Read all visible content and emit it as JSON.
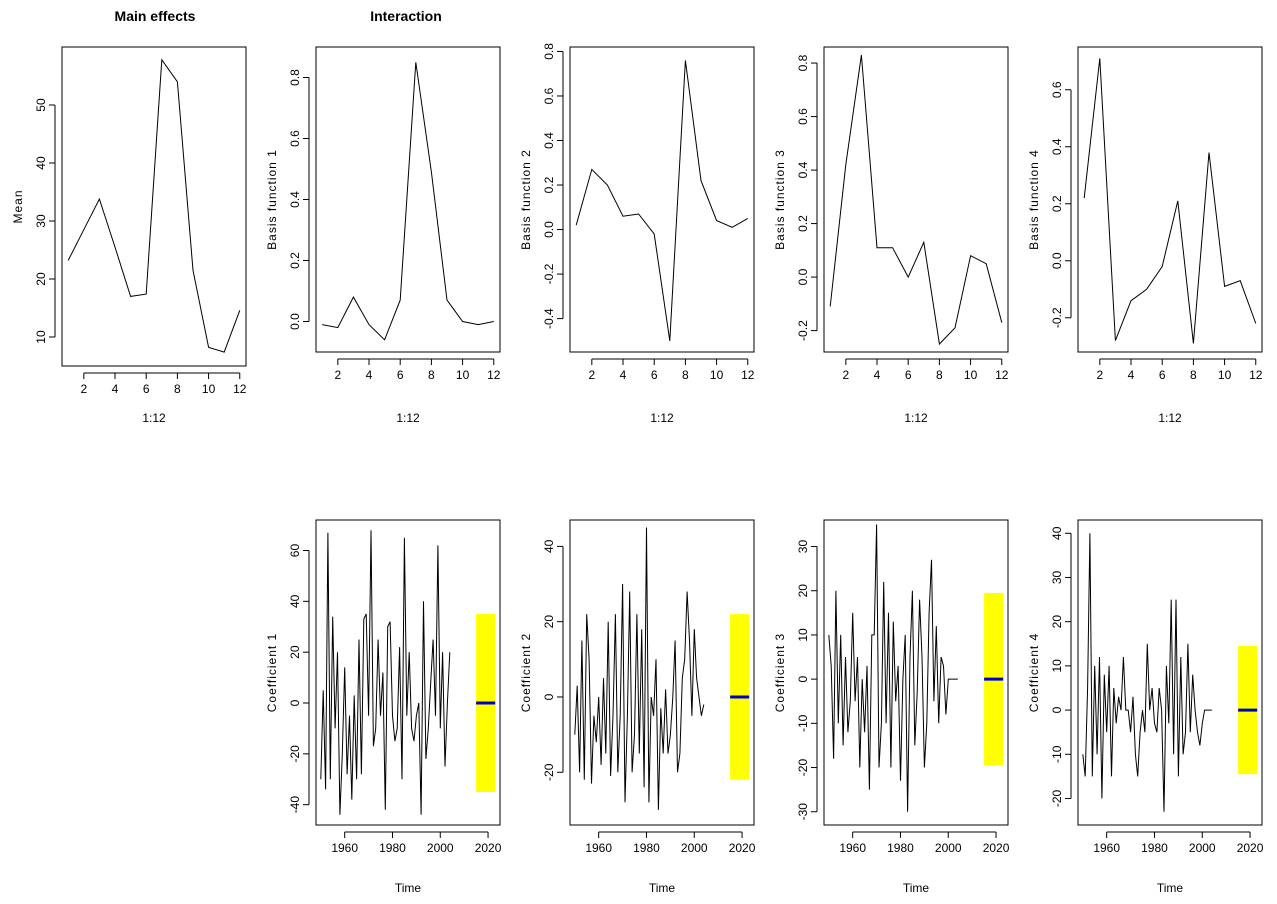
{
  "titles": {
    "main_effects": "Main effects",
    "interaction": "Interaction"
  },
  "colors": {
    "line": "#000000",
    "interval_fill": "#ffff00",
    "forecast_line": "#0000cc"
  },
  "chart_data": [
    {
      "type": "line",
      "ylabel": "Mean",
      "xlabel": "1:12",
      "x": [
        1,
        2,
        3,
        4,
        5,
        6,
        7,
        8,
        9,
        10,
        11,
        12
      ],
      "values": [
        23.2,
        28.5,
        33.8,
        25.5,
        17.0,
        17.4,
        57.8,
        54.0,
        21.5,
        8.2,
        7.4,
        14.6
      ],
      "xlim": [
        0.6,
        12.4
      ],
      "ylim": [
        5,
        60
      ],
      "xticks": [
        2,
        4,
        6,
        8,
        10,
        12
      ],
      "yticks": [
        10,
        20,
        30,
        40,
        50
      ],
      "ytick_labels": [
        "10",
        "20",
        "30",
        "40",
        "50"
      ]
    },
    {
      "type": "line",
      "ylabel": "Basis function 1",
      "xlabel": "1:12",
      "x": [
        1,
        2,
        3,
        4,
        5,
        6,
        7,
        8,
        9,
        10,
        11,
        12
      ],
      "values": [
        -0.01,
        -0.02,
        0.08,
        -0.01,
        -0.06,
        0.07,
        0.85,
        0.49,
        0.07,
        0.0,
        -0.01,
        0.0
      ],
      "xlim": [
        0.6,
        12.4
      ],
      "ylim": [
        -0.1,
        0.9
      ],
      "xticks": [
        2,
        4,
        6,
        8,
        10,
        12
      ],
      "yticks": [
        0.0,
        0.2,
        0.4,
        0.6,
        0.8
      ],
      "ytick_labels": [
        "0.0",
        "0.2",
        "0.4",
        "0.6",
        "0.8"
      ]
    },
    {
      "type": "line",
      "ylabel": "Basis function 2",
      "xlabel": "1:12",
      "x": [
        1,
        2,
        3,
        4,
        5,
        6,
        7,
        8,
        9,
        10,
        11,
        12
      ],
      "values": [
        0.02,
        0.27,
        0.2,
        0.06,
        0.07,
        -0.02,
        -0.5,
        0.76,
        0.22,
        0.04,
        0.01,
        0.05
      ],
      "xlim": [
        0.6,
        12.4
      ],
      "ylim": [
        -0.55,
        0.82
      ],
      "xticks": [
        2,
        4,
        6,
        8,
        10,
        12
      ],
      "yticks": [
        -0.4,
        -0.2,
        0.0,
        0.2,
        0.4,
        0.6,
        0.8
      ],
      "ytick_labels": [
        "-0.4",
        "-0.2",
        "0.0",
        "0.2",
        "0.4",
        "0.6",
        "0.8"
      ]
    },
    {
      "type": "line",
      "ylabel": "Basis function 3",
      "xlabel": "1:12",
      "x": [
        1,
        2,
        3,
        4,
        5,
        6,
        7,
        8,
        9,
        10,
        11,
        12
      ],
      "values": [
        -0.11,
        0.42,
        0.83,
        0.11,
        0.11,
        0.0,
        0.13,
        -0.25,
        -0.19,
        0.08,
        0.05,
        -0.17
      ],
      "xlim": [
        0.6,
        12.4
      ],
      "ylim": [
        -0.28,
        0.86
      ],
      "xticks": [
        2,
        4,
        6,
        8,
        10,
        12
      ],
      "yticks": [
        -0.2,
        0.0,
        0.2,
        0.4,
        0.6,
        0.8
      ],
      "ytick_labels": [
        "-0.2",
        "0.0",
        "0.2",
        "0.4",
        "0.6",
        "0.8"
      ]
    },
    {
      "type": "line",
      "ylabel": "Basis function 4",
      "xlabel": "1:12",
      "x": [
        1,
        2,
        3,
        4,
        5,
        6,
        7,
        8,
        9,
        10,
        11,
        12
      ],
      "values": [
        0.22,
        0.71,
        -0.28,
        -0.14,
        -0.1,
        -0.02,
        0.21,
        -0.29,
        0.38,
        -0.09,
        -0.07,
        -0.22
      ],
      "xlim": [
        0.6,
        12.4
      ],
      "ylim": [
        -0.32,
        0.75
      ],
      "xticks": [
        2,
        4,
        6,
        8,
        10,
        12
      ],
      "yticks": [
        -0.2,
        0.0,
        0.2,
        0.4,
        0.6
      ],
      "ytick_labels": [
        "-0.2",
        "0.0",
        "0.2",
        "0.4",
        "0.6"
      ]
    },
    {
      "type": "line",
      "ylabel": "Coefficient 1",
      "xlabel": "Time",
      "x_start": 1950,
      "values": [
        -30,
        5,
        -34,
        67,
        -30,
        34,
        -10,
        20,
        -44,
        -20,
        14,
        -28,
        -5,
        -38,
        3,
        -30,
        25,
        -28,
        33,
        35,
        -5,
        68,
        -17,
        -10,
        25,
        -5,
        12,
        -42,
        30,
        32,
        -5,
        -15,
        -10,
        22,
        -30,
        65,
        -5,
        20,
        -10,
        -15,
        -5,
        0,
        -44,
        40,
        -22,
        -10,
        8,
        25,
        -5,
        62,
        -10,
        20,
        -25,
        0,
        20
      ],
      "xlim": [
        1948,
        2025
      ],
      "ylim": [
        -48,
        72
      ],
      "xticks": [
        1960,
        1980,
        2000,
        2020
      ],
      "yticks": [
        -40,
        -20,
        0,
        20,
        40,
        60
      ],
      "ytick_labels": [
        "-40",
        "-20",
        "0",
        "20",
        "40",
        "60"
      ],
      "interval": {
        "x_from": 2015,
        "x_to": 2023,
        "lower": -35,
        "upper": 35,
        "mean": 0
      }
    },
    {
      "type": "line",
      "ylabel": "Coefficient 2",
      "xlabel": "Time",
      "x_start": 1950,
      "values": [
        -10,
        3,
        -20,
        15,
        -22,
        22,
        10,
        -23,
        -5,
        -12,
        0,
        -18,
        5,
        -15,
        20,
        -21,
        -5,
        22,
        -20,
        -5,
        30,
        -28,
        -5,
        28,
        -20,
        -10,
        22,
        -15,
        18,
        -24,
        45,
        -28,
        0,
        -5,
        10,
        -30,
        -3,
        -15,
        2,
        -15,
        -10,
        0,
        15,
        -20,
        -15,
        5,
        10,
        28,
        15,
        -5,
        18,
        5,
        0,
        -5,
        -2
      ],
      "xlim": [
        1948,
        2025
      ],
      "ylim": [
        -34,
        47
      ],
      "xticks": [
        1960,
        1980,
        2000,
        2020
      ],
      "yticks": [
        -20,
        0,
        20,
        40
      ],
      "ytick_labels": [
        "-20",
        "0",
        "20",
        "40"
      ],
      "interval": {
        "x_from": 2015,
        "x_to": 2023,
        "lower": -22,
        "upper": 22,
        "mean": 0
      }
    },
    {
      "type": "line",
      "ylabel": "Coefficient 3",
      "xlabel": "Time",
      "x_start": 1950,
      "values": [
        10,
        3,
        -18,
        20,
        -10,
        10,
        -15,
        5,
        -12,
        -5,
        15,
        -5,
        5,
        -20,
        0,
        -12,
        3,
        -25,
        10,
        10,
        35,
        -20,
        -10,
        22,
        -10,
        15,
        -20,
        13,
        -5,
        3,
        -23,
        0,
        10,
        -30,
        5,
        20,
        -15,
        -3,
        18,
        5,
        -20,
        -10,
        15,
        27,
        -5,
        12,
        -10,
        5,
        3,
        -8,
        0,
        0,
        0,
        0,
        0
      ],
      "xlim": [
        1948,
        2025
      ],
      "ylim": [
        -33,
        36
      ],
      "xticks": [
        1960,
        1980,
        2000,
        2020
      ],
      "yticks": [
        -30,
        -20,
        -10,
        0,
        10,
        20,
        30
      ],
      "ytick_labels": [
        "-30",
        "-20",
        "-10",
        "0",
        "10",
        "20",
        "30"
      ],
      "interval": {
        "x_from": 2015,
        "x_to": 2023,
        "lower": -19.5,
        "upper": 19.5,
        "mean": 0
      }
    },
    {
      "type": "line",
      "ylabel": "Coefficient 4",
      "xlabel": "Time",
      "x_start": 1950,
      "values": [
        -10,
        -15,
        5,
        40,
        -15,
        10,
        -10,
        12,
        -20,
        8,
        -5,
        10,
        -15,
        5,
        -3,
        3,
        0,
        12,
        0,
        0,
        -5,
        3,
        -10,
        -15,
        -5,
        0,
        -5,
        15,
        0,
        5,
        -3,
        -5,
        5,
        0,
        -23,
        10,
        -3,
        25,
        -10,
        25,
        -15,
        12,
        -10,
        -5,
        15,
        -5,
        8,
        0,
        -5,
        -8,
        -3,
        0,
        0,
        0,
        0
      ],
      "xlim": [
        1948,
        2025
      ],
      "ylim": [
        -26,
        43
      ],
      "xticks": [
        1960,
        1980,
        2000,
        2020
      ],
      "yticks": [
        -20,
        -10,
        0,
        10,
        20,
        30,
        40
      ],
      "ytick_labels": [
        "-20",
        "-10",
        "0",
        "10",
        "20",
        "30",
        "40"
      ],
      "interval": {
        "x_from": 2015,
        "x_to": 2023,
        "lower": -14.5,
        "upper": 14.5,
        "mean": 0
      }
    }
  ]
}
